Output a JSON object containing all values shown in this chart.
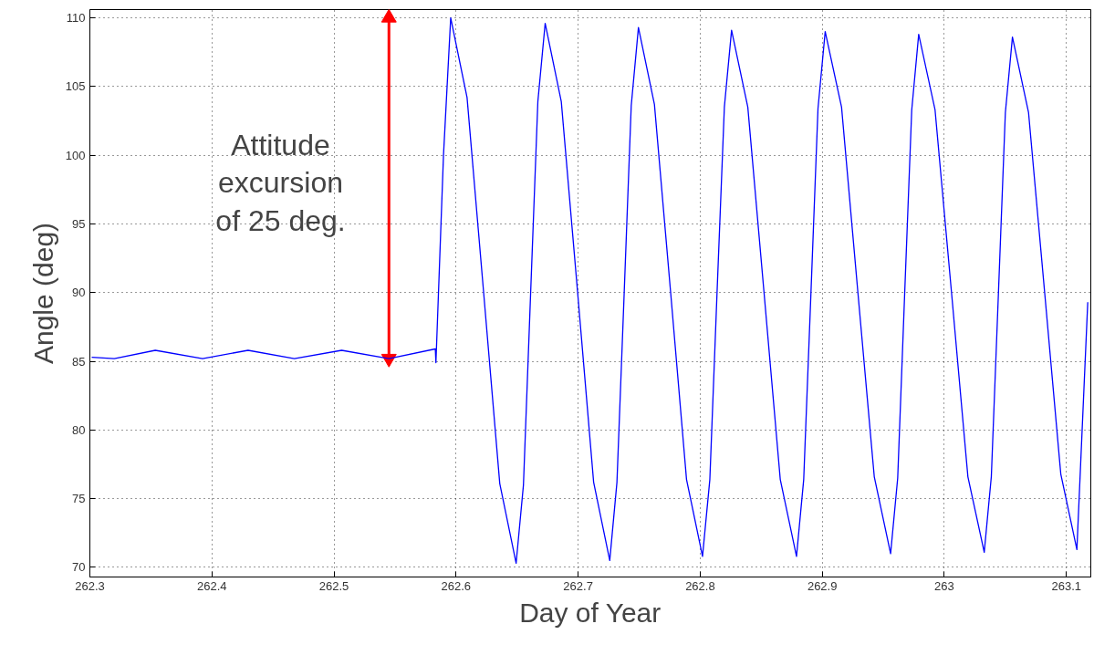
{
  "chart_data": {
    "type": "line",
    "xlabel": "Day of Year",
    "ylabel": "Angle (deg)",
    "xlim": [
      262.3,
      263.12
    ],
    "ylim": [
      69.3,
      110.6
    ],
    "xticks": [
      262.3,
      262.4,
      262.5,
      262.6,
      262.7,
      262.8,
      262.9,
      263,
      263.1
    ],
    "yticks": [
      70,
      75,
      80,
      85,
      90,
      95,
      100,
      105,
      110
    ],
    "grid": true,
    "line_style": "solid",
    "marker": "none",
    "annotations": [
      "Attitude\nexcursion\nof 25 deg."
    ],
    "series": [
      {
        "type": "line",
        "color": "#ff0000",
        "marker": "triangle",
        "x": [
          262.545,
          262.545
        ],
        "values": [
          85.2,
          110
        ]
      },
      {
        "color": "#0000ff",
        "x": [
          262.3015,
          262.32,
          262.3536,
          262.3923,
          262.4296,
          262.4675,
          262.5063,
          262.545,
          262.583,
          262.5835,
          262.5897,
          262.5956,
          262.609,
          262.6224,
          262.6358,
          262.6492,
          262.6552,
          262.6611,
          262.667,
          262.673,
          262.6862,
          262.6995,
          262.7127,
          262.7259,
          262.7318,
          262.7377,
          262.7435,
          262.7494,
          262.7625,
          262.7757,
          262.7888,
          262.8019,
          262.8079,
          262.8138,
          262.8198,
          262.8257,
          262.839,
          262.8523,
          262.8656,
          262.8789,
          262.8848,
          262.8907,
          262.8965,
          262.9024,
          262.9158,
          262.9292,
          262.9426,
          262.956,
          262.9618,
          262.9675,
          262.9733,
          262.979,
          262.9924,
          263.0059,
          263.0193,
          263.0327,
          263.0385,
          263.0443,
          263.05,
          263.0558,
          263.069,
          263.0822,
          263.0954,
          263.1086,
          263.1175
        ],
        "values": [
          85.3,
          85.2,
          85.8,
          85.2,
          85.8,
          85.2,
          85.8,
          85.2,
          85.9,
          84.9,
          100,
          110,
          104.2,
          90.2,
          76.1,
          70.3,
          76.0,
          90.0,
          103.9,
          109.6,
          103.9,
          90.1,
          76.2,
          70.5,
          76.2,
          89.9,
          103.6,
          109.3,
          103.7,
          90.1,
          76.4,
          70.8,
          76.4,
          90.0,
          103.5,
          109.1,
          103.5,
          90.0,
          76.4,
          70.8,
          76.4,
          89.9,
          103.4,
          109.0,
          103.5,
          90.0,
          76.6,
          71.0,
          76.5,
          89.9,
          103.3,
          108.8,
          103.3,
          90.0,
          76.6,
          71.1,
          76.6,
          89.9,
          103.1,
          108.6,
          103.1,
          90.0,
          76.8,
          71.3,
          89.3
        ]
      }
    ]
  }
}
